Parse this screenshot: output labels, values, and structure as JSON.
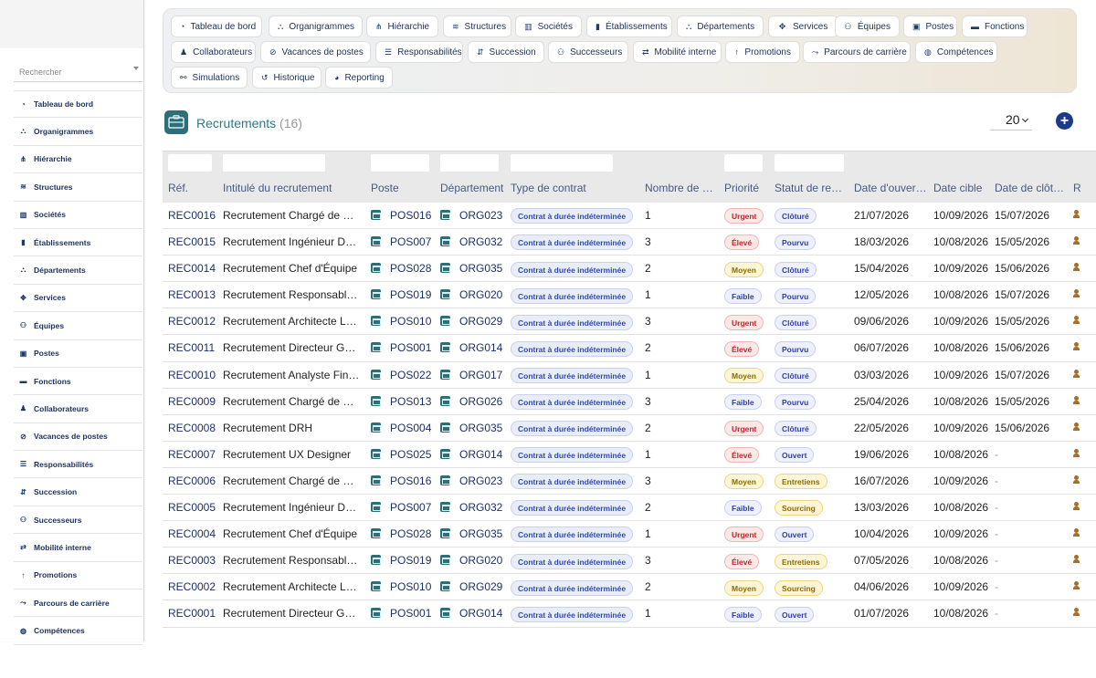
{
  "sidebar": {
    "search_placeholder": "Rechercher",
    "items": [
      {
        "label": "Tableau de bord",
        "icon": "dashboard-icon"
      },
      {
        "label": "Organigrammes",
        "icon": "org-chart-icon"
      },
      {
        "label": "Hiérarchie",
        "icon": "hierarchy-icon"
      },
      {
        "label": "Structures",
        "icon": "layers-icon"
      },
      {
        "label": "Sociétés",
        "icon": "company-icon"
      },
      {
        "label": "Établissements",
        "icon": "building-icon"
      },
      {
        "label": "Départements",
        "icon": "department-icon"
      },
      {
        "label": "Services",
        "icon": "handshake-icon"
      },
      {
        "label": "Équipes",
        "icon": "team-icon"
      },
      {
        "label": "Postes",
        "icon": "badge-icon"
      },
      {
        "label": "Fonctions",
        "icon": "briefcase-icon"
      },
      {
        "label": "Collaborateurs",
        "icon": "user-icon"
      },
      {
        "label": "Vacances de postes",
        "icon": "user-slash-icon"
      },
      {
        "label": "Responsabilités",
        "icon": "list-icon"
      },
      {
        "label": "Succession",
        "icon": "succession-icon"
      },
      {
        "label": "Successeurs",
        "icon": "users-icon"
      },
      {
        "label": "Mobilité interne",
        "icon": "exchange-icon"
      },
      {
        "label": "Promotions",
        "icon": "arrow-up-icon"
      },
      {
        "label": "Parcours de carrière",
        "icon": "route-icon"
      },
      {
        "label": "Compétences",
        "icon": "brain-icon"
      }
    ]
  },
  "nav": {
    "buttons": [
      {
        "label": "Tableau de bord",
        "icon": "dashboard-icon"
      },
      {
        "label": "Organigrammes",
        "icon": "org-chart-icon"
      },
      {
        "label": "Hiérarchie",
        "icon": "hierarchy-icon"
      },
      {
        "label": "Structures",
        "icon": "layers-icon"
      },
      {
        "label": "Sociétés",
        "icon": "company-icon"
      },
      {
        "label": "Établissements",
        "icon": "building-icon"
      },
      {
        "label": "Départements",
        "icon": "department-icon"
      },
      {
        "label": "Services",
        "icon": "handshake-icon"
      },
      {
        "label": "Équipes",
        "icon": "team-icon"
      },
      {
        "label": "Postes",
        "icon": "badge-icon"
      },
      {
        "label": "Fonctions",
        "icon": "briefcase-icon"
      },
      {
        "label": "Collaborateurs",
        "icon": "user-icon"
      },
      {
        "label": "Vacances de postes",
        "icon": "user-slash-icon"
      },
      {
        "label": "Responsabilités",
        "icon": "list-icon"
      },
      {
        "label": "Succession",
        "icon": "succession-icon"
      },
      {
        "label": "Successeurs",
        "icon": "users-icon"
      },
      {
        "label": "Mobilité interne",
        "icon": "exchange-icon"
      },
      {
        "label": "Promotions",
        "icon": "arrow-up-icon"
      },
      {
        "label": "Parcours de carrière",
        "icon": "route-icon"
      },
      {
        "label": "Compétences",
        "icon": "brain-icon"
      },
      {
        "label": "Simulations",
        "icon": "simulation-icon"
      },
      {
        "label": "Historique",
        "icon": "history-icon"
      },
      {
        "label": "Reporting",
        "icon": "pie-chart-icon"
      }
    ]
  },
  "header": {
    "title": "Recrutements",
    "count": "(16)",
    "page_size": "20",
    "icon": "recruitment-icon",
    "add_icon": "plus-circle-icon"
  },
  "table": {
    "columns": [
      "Réf.",
      "Intitulé du recrutement",
      "Poste",
      "Département",
      "Type de contrat",
      "Nombre de postes",
      "Priorité",
      "Statut de recrutement",
      "Date d'ouverture",
      "Date cible",
      "Date de clôture",
      "R"
    ],
    "rows": [
      {
        "ref": "REC0016",
        "title": "Recrutement Chargé de Communication",
        "poste": "POS016",
        "dept": "ORG023",
        "contrat": "Contrat à durée indéterminée",
        "nb": "1",
        "priorite": "Urgent",
        "statut": "Clôturé",
        "ouverture": "21/07/2026",
        "cible": "10/09/2026",
        "cloture": "15/07/2026"
      },
      {
        "ref": "REC0015",
        "title": "Recrutement Ingénieur Développement",
        "poste": "POS007",
        "dept": "ORG032",
        "contrat": "Contrat à durée indéterminée",
        "nb": "3",
        "priorite": "Élevé",
        "statut": "Pourvu",
        "ouverture": "18/03/2026",
        "cible": "10/08/2026",
        "cloture": "15/05/2026"
      },
      {
        "ref": "REC0014",
        "title": "Recrutement Chef d'Équipe",
        "poste": "POS028",
        "dept": "ORG035",
        "contrat": "Contrat à durée indéterminée",
        "nb": "2",
        "priorite": "Moyen",
        "statut": "Clôturé",
        "ouverture": "15/04/2026",
        "cible": "10/09/2026",
        "cloture": "15/06/2026"
      },
      {
        "ref": "REC0013",
        "title": "Recrutement Responsable Qualité",
        "poste": "POS019",
        "dept": "ORG020",
        "contrat": "Contrat à durée indéterminée",
        "nb": "1",
        "priorite": "Faible",
        "statut": "Pourvu",
        "ouverture": "12/05/2026",
        "cible": "10/08/2026",
        "cloture": "15/07/2026"
      },
      {
        "ref": "REC0012",
        "title": "Recrutement Architecte Logiciel",
        "poste": "POS010",
        "dept": "ORG029",
        "contrat": "Contrat à durée indéterminée",
        "nb": "3",
        "priorite": "Urgent",
        "statut": "Clôturé",
        "ouverture": "09/06/2026",
        "cible": "10/09/2026",
        "cloture": "15/05/2026"
      },
      {
        "ref": "REC0011",
        "title": "Recrutement Directeur Général",
        "poste": "POS001",
        "dept": "ORG014",
        "contrat": "Contrat à durée indéterminée",
        "nb": "2",
        "priorite": "Élevé",
        "statut": "Pourvu",
        "ouverture": "06/07/2026",
        "cible": "10/08/2026",
        "cloture": "15/06/2026"
      },
      {
        "ref": "REC0010",
        "title": "Recrutement Analyste Financier",
        "poste": "POS022",
        "dept": "ORG017",
        "contrat": "Contrat à durée indéterminée",
        "nb": "1",
        "priorite": "Moyen",
        "statut": "Clôturé",
        "ouverture": "03/03/2026",
        "cible": "10/09/2026",
        "cloture": "15/07/2026"
      },
      {
        "ref": "REC0009",
        "title": "Recrutement Chargé de Recrutement",
        "poste": "POS013",
        "dept": "ORG026",
        "contrat": "Contrat à durée indéterminée",
        "nb": "3",
        "priorite": "Faible",
        "statut": "Pourvu",
        "ouverture": "25/04/2026",
        "cible": "10/08/2026",
        "cloture": "15/05/2026"
      },
      {
        "ref": "REC0008",
        "title": "Recrutement DRH",
        "poste": "POS004",
        "dept": "ORG035",
        "contrat": "Contrat à durée indéterminée",
        "nb": "2",
        "priorite": "Urgent",
        "statut": "Clôturé",
        "ouverture": "22/05/2026",
        "cible": "10/09/2026",
        "cloture": "15/06/2026"
      },
      {
        "ref": "REC0007",
        "title": "Recrutement UX Designer",
        "poste": "POS025",
        "dept": "ORG014",
        "contrat": "Contrat à durée indéterminée",
        "nb": "1",
        "priorite": "Élevé",
        "statut": "Ouvert",
        "ouverture": "19/06/2026",
        "cible": "10/08/2026",
        "cloture": "-"
      },
      {
        "ref": "REC0006",
        "title": "Recrutement Chargé de Communication",
        "poste": "POS016",
        "dept": "ORG023",
        "contrat": "Contrat à durée indéterminée",
        "nb": "3",
        "priorite": "Moyen",
        "statut": "Entretiens",
        "ouverture": "16/07/2026",
        "cible": "10/09/2026",
        "cloture": "-"
      },
      {
        "ref": "REC0005",
        "title": "Recrutement Ingénieur Développement",
        "poste": "POS007",
        "dept": "ORG032",
        "contrat": "Contrat à durée indéterminée",
        "nb": "2",
        "priorite": "Faible",
        "statut": "Sourcing",
        "ouverture": "13/03/2026",
        "cible": "10/08/2026",
        "cloture": "-"
      },
      {
        "ref": "REC0004",
        "title": "Recrutement Chef d'Équipe",
        "poste": "POS028",
        "dept": "ORG035",
        "contrat": "Contrat à durée indéterminée",
        "nb": "1",
        "priorite": "Urgent",
        "statut": "Ouvert",
        "ouverture": "10/04/2026",
        "cible": "10/09/2026",
        "cloture": "-"
      },
      {
        "ref": "REC0003",
        "title": "Recrutement Responsable Qualité",
        "poste": "POS019",
        "dept": "ORG020",
        "contrat": "Contrat à durée indéterminée",
        "nb": "3",
        "priorite": "Élevé",
        "statut": "Entretiens",
        "ouverture": "07/05/2026",
        "cible": "10/08/2026",
        "cloture": "-"
      },
      {
        "ref": "REC0002",
        "title": "Recrutement Architecte Logiciel",
        "poste": "POS010",
        "dept": "ORG029",
        "contrat": "Contrat à durée indéterminée",
        "nb": "2",
        "priorite": "Moyen",
        "statut": "Sourcing",
        "ouverture": "04/06/2026",
        "cible": "10/09/2026",
        "cloture": "-"
      },
      {
        "ref": "REC0001",
        "title": "Recrutement Directeur Général",
        "poste": "POS001",
        "dept": "ORG014",
        "contrat": "Contrat à durée indéterminée",
        "nb": "1",
        "priorite": "Faible",
        "statut": "Ouvert",
        "ouverture": "01/07/2026",
        "cible": "10/08/2026",
        "cloture": "-"
      }
    ]
  },
  "colors": {
    "accent": "#2c7a86",
    "link": "#1d2f6b",
    "priority": {
      "Urgent": {
        "bg": "#fde8e8",
        "border": "#f1b5b5",
        "fg": "#c0262d"
      },
      "Élevé": {
        "bg": "#fde8e8",
        "border": "#f1b5b5",
        "fg": "#c0262d"
      },
      "Moyen": {
        "bg": "#fdf6d6",
        "border": "#ecd780",
        "fg": "#8f6a00"
      },
      "Faible": {
        "bg": "#eef1fb",
        "border": "#c7d0ef",
        "fg": "#2d3fae"
      }
    }
  }
}
